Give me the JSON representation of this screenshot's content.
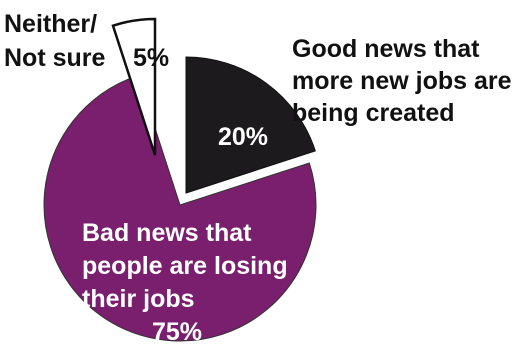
{
  "chart_data": {
    "type": "pie",
    "title": "",
    "slices": [
      {
        "id": "good",
        "lines": [
          "Good news that",
          "more new jobs are",
          "being created"
        ],
        "value": 20,
        "value_label": "20%",
        "color": "#1c1a1c"
      },
      {
        "id": "bad",
        "lines": [
          "Bad news that",
          "people are losing",
          "their jobs"
        ],
        "value": 75,
        "value_label": "75%",
        "color": "#7a1f6e"
      },
      {
        "id": "neither",
        "lines": [
          "Neither/",
          "Not sure"
        ],
        "value": 5,
        "value_label": "5%",
        "color": "#ffffff"
      }
    ],
    "slice_outline_color": "#111111",
    "label_color_dark": "#111111",
    "label_color_light": "#ffffff",
    "legend": "none"
  }
}
